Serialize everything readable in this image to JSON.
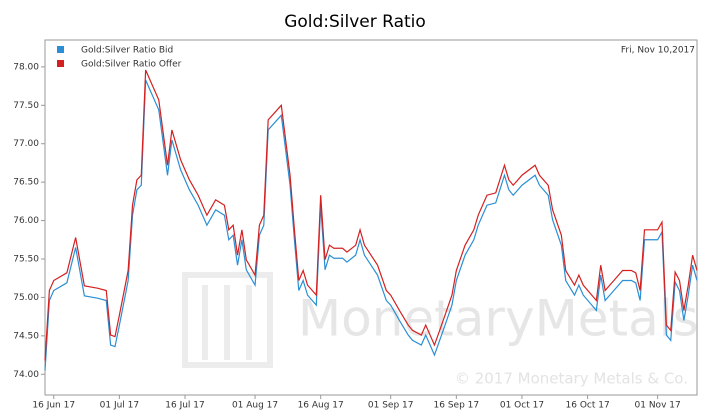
{
  "chart_data": {
    "type": "line",
    "title": "Gold:Silver Ratio",
    "annotation": "Fri, Nov 10,2017",
    "watermark": "MonetaryMetals",
    "copyright": "© 2017 Monetary Metals & Co.",
    "grid": false,
    "legend": "top-left",
    "x": [
      "2017-06-14",
      "2017-06-15",
      "2017-06-16",
      "2017-06-19",
      "2017-06-21",
      "2017-06-23",
      "2017-06-26",
      "2017-06-28",
      "2017-06-29",
      "2017-06-30",
      "2017-07-01",
      "2017-07-03",
      "2017-07-04",
      "2017-07-05",
      "2017-07-06",
      "2017-07-07",
      "2017-07-08",
      "2017-07-10",
      "2017-07-12",
      "2017-07-13",
      "2017-07-15",
      "2017-07-17",
      "2017-07-19",
      "2017-07-21",
      "2017-07-23",
      "2017-07-25",
      "2017-07-26",
      "2017-07-27",
      "2017-07-28",
      "2017-07-29",
      "2017-07-30",
      "2017-08-01",
      "2017-08-02",
      "2017-08-03",
      "2017-08-04",
      "2017-08-07",
      "2017-08-09",
      "2017-08-10",
      "2017-08-11",
      "2017-08-12",
      "2017-08-13",
      "2017-08-15",
      "2017-08-16",
      "2017-08-17",
      "2017-08-18",
      "2017-08-19",
      "2017-08-21",
      "2017-08-22",
      "2017-08-24",
      "2017-08-25",
      "2017-08-26",
      "2017-08-29",
      "2017-08-31",
      "2017-09-01",
      "2017-09-03",
      "2017-09-05",
      "2017-09-06",
      "2017-09-08",
      "2017-09-09",
      "2017-09-10",
      "2017-09-11",
      "2017-09-13",
      "2017-09-15",
      "2017-09-16",
      "2017-09-18",
      "2017-09-20",
      "2017-09-21",
      "2017-09-23",
      "2017-09-25",
      "2017-09-27",
      "2017-09-28",
      "2017-09-29",
      "2017-10-01",
      "2017-10-04",
      "2017-10-05",
      "2017-10-07",
      "2017-10-08",
      "2017-10-10",
      "2017-10-11",
      "2017-10-13",
      "2017-10-14",
      "2017-10-15",
      "2017-10-18",
      "2017-10-19",
      "2017-10-20",
      "2017-10-22",
      "2017-10-24",
      "2017-10-26",
      "2017-10-27",
      "2017-10-28",
      "2017-10-29",
      "2017-11-01",
      "2017-11-02",
      "2017-11-03",
      "2017-11-04",
      "2017-11-05",
      "2017-11-06",
      "2017-11-07",
      "2017-11-08",
      "2017-11-09",
      "2017-11-10"
    ],
    "series": [
      {
        "name": "Gold:Silver Ratio Bid",
        "color": "#2a8fd4",
        "values": [
          74.05,
          74.96,
          75.09,
          75.19,
          75.65,
          75.02,
          74.99,
          74.96,
          74.38,
          74.36,
          74.64,
          75.22,
          76.07,
          76.4,
          76.46,
          77.83,
          77.7,
          77.44,
          76.59,
          77.05,
          76.66,
          76.4,
          76.2,
          75.94,
          76.14,
          76.07,
          75.75,
          75.81,
          75.42,
          75.75,
          75.36,
          75.16,
          75.81,
          75.94,
          77.18,
          77.37,
          76.46,
          75.75,
          75.09,
          75.22,
          75.03,
          74.9,
          76.2,
          75.36,
          75.55,
          75.51,
          75.51,
          75.46,
          75.55,
          75.75,
          75.55,
          75.29,
          74.96,
          74.9,
          74.7,
          74.51,
          74.44,
          74.38,
          74.51,
          74.38,
          74.25,
          74.57,
          74.9,
          75.22,
          75.55,
          75.75,
          75.94,
          76.2,
          76.23,
          76.59,
          76.4,
          76.33,
          76.46,
          76.59,
          76.46,
          76.33,
          76.01,
          75.68,
          75.22,
          75.03,
          75.16,
          75.03,
          74.83,
          75.29,
          74.96,
          75.09,
          75.22,
          75.22,
          75.19,
          74.96,
          75.75,
          75.75,
          75.85,
          74.51,
          74.44,
          75.2,
          75.09,
          74.7,
          75.03,
          75.42,
          75.22
        ]
      },
      {
        "name": "Gold:Silver Ratio Offer",
        "color": "#d42020",
        "values": [
          74.18,
          75.09,
          75.22,
          75.32,
          75.78,
          75.15,
          75.12,
          75.09,
          74.51,
          74.49,
          74.77,
          75.35,
          76.2,
          76.53,
          76.59,
          77.96,
          77.83,
          77.57,
          76.72,
          77.18,
          76.79,
          76.53,
          76.33,
          76.07,
          76.27,
          76.2,
          75.88,
          75.94,
          75.55,
          75.88,
          75.49,
          75.29,
          75.94,
          76.07,
          77.31,
          77.5,
          76.59,
          75.88,
          75.22,
          75.35,
          75.16,
          75.03,
          76.33,
          75.49,
          75.68,
          75.64,
          75.64,
          75.59,
          75.68,
          75.88,
          75.68,
          75.42,
          75.09,
          75.03,
          74.83,
          74.64,
          74.57,
          74.51,
          74.64,
          74.51,
          74.38,
          74.7,
          75.03,
          75.35,
          75.68,
          75.88,
          76.07,
          76.33,
          76.36,
          76.72,
          76.53,
          76.46,
          76.59,
          76.72,
          76.59,
          76.46,
          76.14,
          75.81,
          75.35,
          75.16,
          75.29,
          75.16,
          74.96,
          75.42,
          75.09,
          75.22,
          75.35,
          75.35,
          75.32,
          75.09,
          75.88,
          75.88,
          75.98,
          74.64,
          74.57,
          75.33,
          75.22,
          74.83,
          75.16,
          75.55,
          75.35
        ]
      }
    ],
    "xlim": [
      "2017-06-14",
      "2017-11-10"
    ],
    "xticks": [
      {
        "value": "2017-06-16",
        "label": "16 Jun 17"
      },
      {
        "value": "2017-07-01",
        "label": "01 Jul 17"
      },
      {
        "value": "2017-07-16",
        "label": "16 Jul 17"
      },
      {
        "value": "2017-08-01",
        "label": "01 Aug 17"
      },
      {
        "value": "2017-08-16",
        "label": "16 Aug 17"
      },
      {
        "value": "2017-09-01",
        "label": "01 Sep 17"
      },
      {
        "value": "2017-09-16",
        "label": "16 Sep 17"
      },
      {
        "value": "2017-10-01",
        "label": "01 Oct 17"
      },
      {
        "value": "2017-10-16",
        "label": "16 Oct 17"
      },
      {
        "value": "2017-11-01",
        "label": "01 Nov 17"
      }
    ],
    "ylim": [
      73.73,
      78.35
    ],
    "yticks": [
      {
        "value": 74,
        "label": "74.00"
      },
      {
        "value": 74.5,
        "label": "74.50"
      },
      {
        "value": 75,
        "label": "75.00"
      },
      {
        "value": 75.5,
        "label": "75.50"
      },
      {
        "value": 76,
        "label": "76.00"
      },
      {
        "value": 76.5,
        "label": "76.50"
      },
      {
        "value": 77,
        "label": "77.00"
      },
      {
        "value": 77.5,
        "label": "77.50"
      },
      {
        "value": 78,
        "label": "78.00"
      }
    ]
  }
}
